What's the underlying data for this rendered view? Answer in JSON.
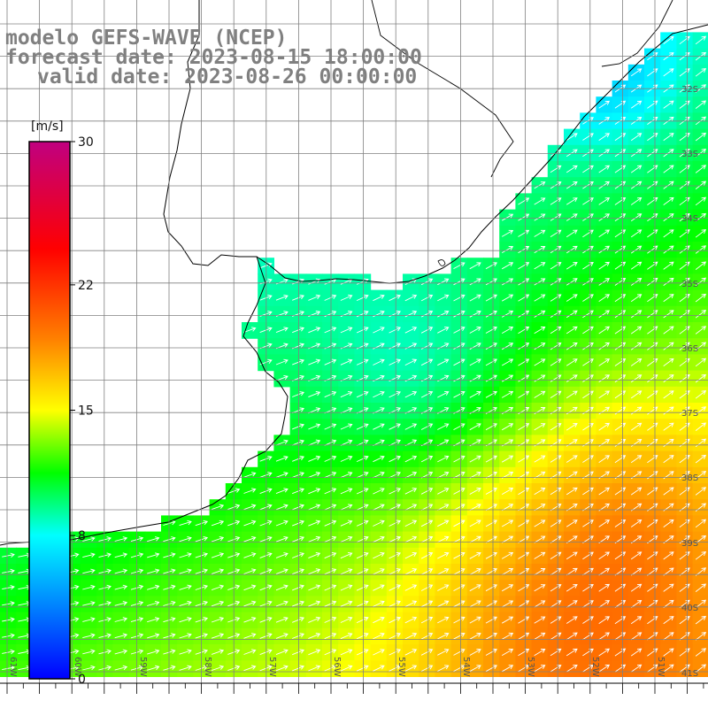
{
  "title": {
    "model": "modelo GEFS-WAVE (NCEP)",
    "forecast": "forecast date: 2023-08-15 18:00:00",
    "valid": "valid date: 2023-08-26 00:00:00"
  },
  "colorbar": {
    "unit": "[m/s]",
    "ticks": [
      {
        "value": 30,
        "label": "30"
      },
      {
        "value": 22,
        "label": "22"
      },
      {
        "value": 15,
        "label": "15"
      },
      {
        "value": 8,
        "label": "8"
      },
      {
        "value": 0,
        "label": "0"
      }
    ],
    "min": 0,
    "max": 30,
    "colors": [
      "#0000ff",
      "#0080ff",
      "#00ffff",
      "#00ff00",
      "#ffff00",
      "#ff8000",
      "#ff0000",
      "#c00080"
    ]
  },
  "map": {
    "lat_labels": [
      "32S",
      "33S",
      "34S",
      "35S",
      "36S",
      "37S",
      "38S",
      "39S",
      "40S",
      "41S"
    ],
    "lon_labels": [
      "61W",
      "60W",
      "59W",
      "58W",
      "57W",
      "56W",
      "55W",
      "54W",
      "53W",
      "52W",
      "51W"
    ],
    "land_color": "#ffffff",
    "grid_color": "#808080"
  }
}
